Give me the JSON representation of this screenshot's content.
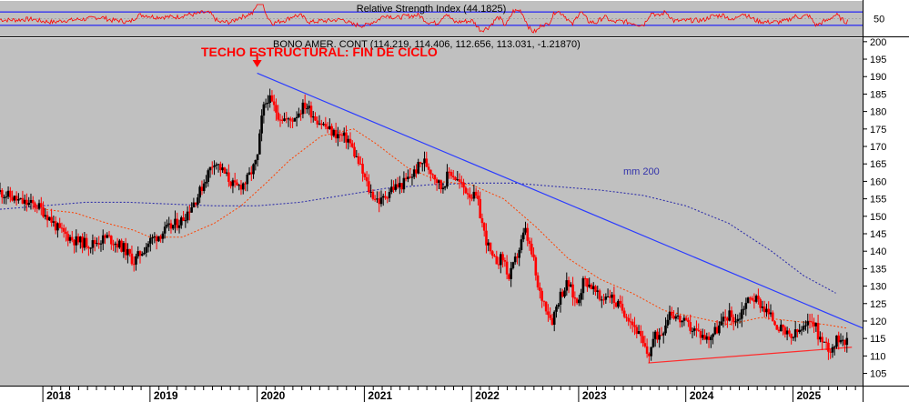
{
  "colors": {
    "background": "#c0c0c0",
    "candle_up": "#000000",
    "candle_down": "#ff0000",
    "resistance_line": "#2b3cff",
    "support_line": "#ff2b2b",
    "ma_short": "#ff4000",
    "ma_200": "#3333aa",
    "rsi_line": "#ff0000",
    "rsi_bounds": "#0000ff",
    "annotation": "#ff0000"
  },
  "chart_data": [
    {
      "type": "line",
      "title": "Relative Strength Index (44.1825)",
      "y_ticks": [
        "50"
      ],
      "ylim": [
        0,
        100
      ],
      "bounds": [
        70,
        30
      ],
      "note": "oscillator panel"
    },
    {
      "type": "candlestick",
      "header": "BONO AMER. CONT (114.219, 114.406, 112.656, 113.031, -1.21870)",
      "annotation": "TECHO ESTRUCTURAL: FIN DE CICLO",
      "ma_label": "mm 200",
      "x_ticks": [
        "2018",
        "2019",
        "2020",
        "2021",
        "2022",
        "2023",
        "2024",
        "2025"
      ],
      "y_ticks": [
        "105",
        "110",
        "115",
        "120",
        "125",
        "130",
        "135",
        "140",
        "145",
        "150",
        "155",
        "160",
        "165",
        "170",
        "175",
        "180",
        "185",
        "190",
        "195",
        "200"
      ],
      "ylim": [
        101.5,
        201
      ],
      "xlim": [
        2017.6,
        2025.65
      ],
      "price_path": [
        [
          2017.6,
          157
        ],
        [
          2017.8,
          154
        ],
        [
          2017.95,
          153
        ],
        [
          2018.05,
          150
        ],
        [
          2018.15,
          146
        ],
        [
          2018.3,
          143
        ],
        [
          2018.45,
          142
        ],
        [
          2018.6,
          144
        ],
        [
          2018.75,
          141
        ],
        [
          2018.85,
          137
        ],
        [
          2019.0,
          143
        ],
        [
          2019.15,
          146
        ],
        [
          2019.3,
          149
        ],
        [
          2019.45,
          156
        ],
        [
          2019.55,
          163
        ],
        [
          2019.6,
          166
        ],
        [
          2019.7,
          162
        ],
        [
          2019.8,
          158
        ],
        [
          2019.9,
          160
        ],
        [
          2020.0,
          166
        ],
        [
          2020.05,
          180
        ],
        [
          2020.1,
          184
        ],
        [
          2020.2,
          179
        ],
        [
          2020.3,
          177
        ],
        [
          2020.45,
          182
        ],
        [
          2020.55,
          178
        ],
        [
          2020.7,
          174
        ],
        [
          2020.85,
          172
        ],
        [
          2020.95,
          165
        ],
        [
          2021.05,
          157
        ],
        [
          2021.15,
          154
        ],
        [
          2021.25,
          158
        ],
        [
          2021.35,
          159
        ],
        [
          2021.45,
          162
        ],
        [
          2021.55,
          166
        ],
        [
          2021.65,
          162
        ],
        [
          2021.72,
          158
        ],
        [
          2021.8,
          163
        ],
        [
          2021.9,
          159
        ],
        [
          2022.0,
          156
        ],
        [
          2022.05,
          155
        ],
        [
          2022.12,
          145
        ],
        [
          2022.2,
          137
        ],
        [
          2022.3,
          138
        ],
        [
          2022.35,
          132
        ],
        [
          2022.45,
          141
        ],
        [
          2022.5,
          146
        ],
        [
          2022.58,
          137
        ],
        [
          2022.62,
          129
        ],
        [
          2022.7,
          124
        ],
        [
          2022.75,
          120
        ],
        [
          2022.82,
          127
        ],
        [
          2022.9,
          131
        ],
        [
          2022.98,
          125
        ],
        [
          2023.05,
          132
        ],
        [
          2023.12,
          130
        ],
        [
          2023.2,
          126
        ],
        [
          2023.28,
          128
        ],
        [
          2023.35,
          125
        ],
        [
          2023.45,
          122
        ],
        [
          2023.55,
          117
        ],
        [
          2023.6,
          113
        ],
        [
          2023.65,
          110
        ],
        [
          2023.7,
          115
        ],
        [
          2023.78,
          117
        ],
        [
          2023.85,
          123
        ],
        [
          2023.92,
          121
        ],
        [
          2024.0,
          119
        ],
        [
          2024.1,
          117
        ],
        [
          2024.2,
          115
        ],
        [
          2024.3,
          118
        ],
        [
          2024.4,
          122
        ],
        [
          2024.48,
          120
        ],
        [
          2024.55,
          125
        ],
        [
          2024.62,
          127
        ],
        [
          2024.7,
          125
        ],
        [
          2024.8,
          121
        ],
        [
          2024.9,
          117
        ],
        [
          2024.98,
          115
        ],
        [
          2025.05,
          117
        ],
        [
          2025.12,
          118
        ],
        [
          2025.18,
          121
        ],
        [
          2025.25,
          115
        ],
        [
          2025.35,
          112
        ],
        [
          2025.45,
          116
        ],
        [
          2025.52,
          113
        ]
      ],
      "ma_short_path": [
        [
          2018.0,
          152
        ],
        [
          2018.3,
          151
        ],
        [
          2018.6,
          148
        ],
        [
          2018.85,
          146
        ],
        [
          2019.0,
          144
        ],
        [
          2019.3,
          144
        ],
        [
          2019.6,
          148
        ],
        [
          2019.85,
          153
        ],
        [
          2020.1,
          160
        ],
        [
          2020.3,
          166
        ],
        [
          2020.6,
          173
        ],
        [
          2020.9,
          175
        ],
        [
          2021.1,
          171
        ],
        [
          2021.4,
          164
        ],
        [
          2021.7,
          160
        ],
        [
          2022.0,
          159
        ],
        [
          2022.3,
          155
        ],
        [
          2022.6,
          147
        ],
        [
          2022.9,
          138
        ],
        [
          2023.2,
          132
        ],
        [
          2023.5,
          128
        ],
        [
          2023.8,
          123
        ],
        [
          2024.1,
          121
        ],
        [
          2024.4,
          119
        ],
        [
          2024.7,
          121
        ],
        [
          2025.0,
          120
        ],
        [
          2025.3,
          119
        ],
        [
          2025.5,
          118
        ]
      ],
      "ma_200_path": [
        [
          2017.6,
          152
        ],
        [
          2018.0,
          153
        ],
        [
          2018.4,
          154
        ],
        [
          2018.8,
          154
        ],
        [
          2019.2,
          153.5
        ],
        [
          2019.6,
          153
        ],
        [
          2020.0,
          153
        ],
        [
          2020.4,
          154
        ],
        [
          2020.8,
          156
        ],
        [
          2021.2,
          158
        ],
        [
          2021.6,
          159
        ],
        [
          2022.0,
          159.5
        ],
        [
          2022.4,
          159.5
        ],
        [
          2022.8,
          158.5
        ],
        [
          2023.2,
          157.5
        ],
        [
          2023.6,
          156
        ],
        [
          2024.0,
          153
        ],
        [
          2024.4,
          148
        ],
        [
          2024.8,
          140
        ],
        [
          2025.1,
          133
        ],
        [
          2025.4,
          128
        ]
      ],
      "resistance_line": [
        [
          2020.0,
          191
        ],
        [
          2025.65,
          118
        ]
      ],
      "support_line": [
        [
          2023.65,
          108
        ],
        [
          2025.55,
          112.5
        ]
      ]
    }
  ]
}
